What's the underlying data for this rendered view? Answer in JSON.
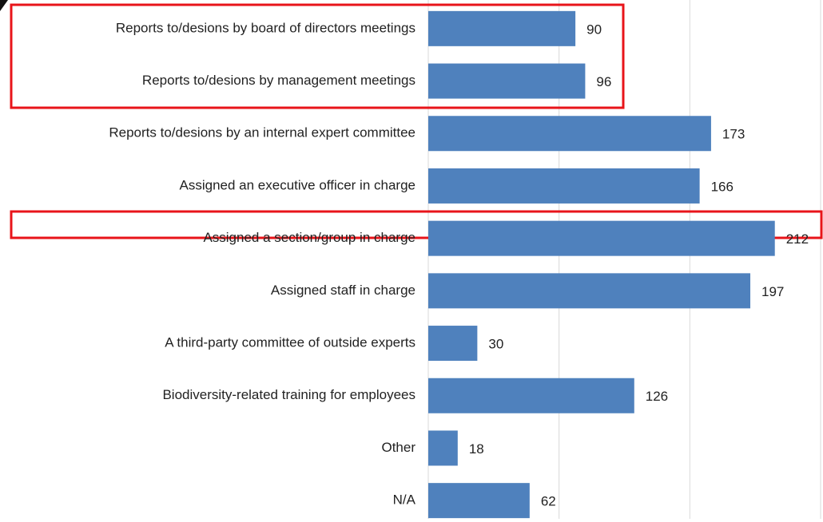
{
  "chart_data": {
    "type": "bar",
    "orientation": "horizontal",
    "categories": [
      "Reports to/desions by board of directors meetings",
      "Reports to/desions by management meetings",
      "Reports to/desions by an internal expert committee",
      "Assigned an executive officer in charge",
      "Assigned a section/group in charge",
      "Assigned staff in charge",
      "A third-party committee of outside experts",
      "Biodiversity-related training for employees",
      "Other",
      "N/A"
    ],
    "values": [
      90,
      96,
      173,
      166,
      212,
      197,
      30,
      126,
      18,
      62
    ],
    "color": "#4f81bd",
    "xlim": [
      0,
      240
    ],
    "xticks": [
      0,
      80,
      160,
      240
    ],
    "grid": true
  }
}
